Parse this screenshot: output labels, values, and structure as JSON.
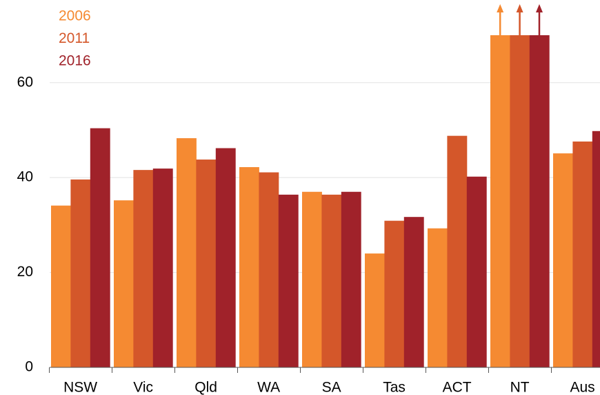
{
  "chart_data": {
    "type": "bar",
    "categories": [
      "NSW",
      "Vic",
      "Qld",
      "WA",
      "SA",
      "Tas",
      "ACT",
      "NT",
      "Aus"
    ],
    "series": [
      {
        "name": "2006",
        "color": "#f58a32",
        "values": [
          34.1,
          35.2,
          48.3,
          42.2,
          37.0,
          24.0,
          29.3,
          70,
          45.1
        ]
      },
      {
        "name": "2011",
        "color": "#d4572a",
        "values": [
          39.6,
          41.6,
          43.8,
          41.1,
          36.4,
          30.9,
          48.8,
          70,
          47.6
        ]
      },
      {
        "name": "2016",
        "color": "#a0222a",
        "values": [
          50.4,
          41.9,
          46.2,
          36.4,
          37.0,
          31.7,
          40.2,
          70,
          49.8
        ]
      }
    ],
    "ylim": [
      0,
      70
    ],
    "yticks": [
      0,
      20,
      40,
      60
    ],
    "grid": true,
    "legend": "top-left"
  }
}
